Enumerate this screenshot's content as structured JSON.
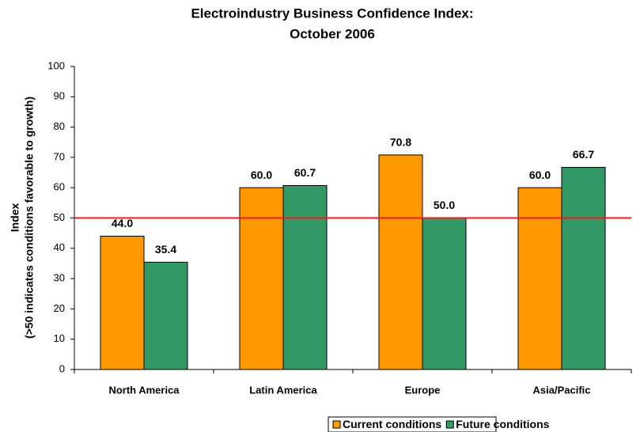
{
  "chart_data": {
    "type": "bar",
    "title": [
      "Electroindustry Business Confidence Index:",
      "October 2006"
    ],
    "y_label": [
      "Index",
      "(>50 indicates conditions favorable to growth)"
    ],
    "categories": [
      "North America",
      "Latin America",
      "Europe",
      "Asia/Pacific"
    ],
    "series": [
      {
        "name": "Current conditions",
        "color": "#ff9900",
        "values": [
          44.0,
          60.0,
          70.8,
          60.0
        ],
        "value_labels": [
          "44.0",
          "60.0",
          "70.8",
          "60.0"
        ]
      },
      {
        "name": "Future conditions",
        "color": "#339966",
        "values": [
          35.4,
          60.7,
          50.0,
          66.7
        ],
        "value_labels": [
          "35.4",
          "60.7",
          "50.0",
          "66.7"
        ]
      }
    ],
    "ylim": [
      0,
      100
    ],
    "yticks": [
      0,
      10,
      20,
      30,
      40,
      50,
      60,
      70,
      80,
      90,
      100
    ],
    "grid": false,
    "reference_line": {
      "value": 50,
      "color": "#e8201f"
    },
    "legend": "bottom"
  }
}
